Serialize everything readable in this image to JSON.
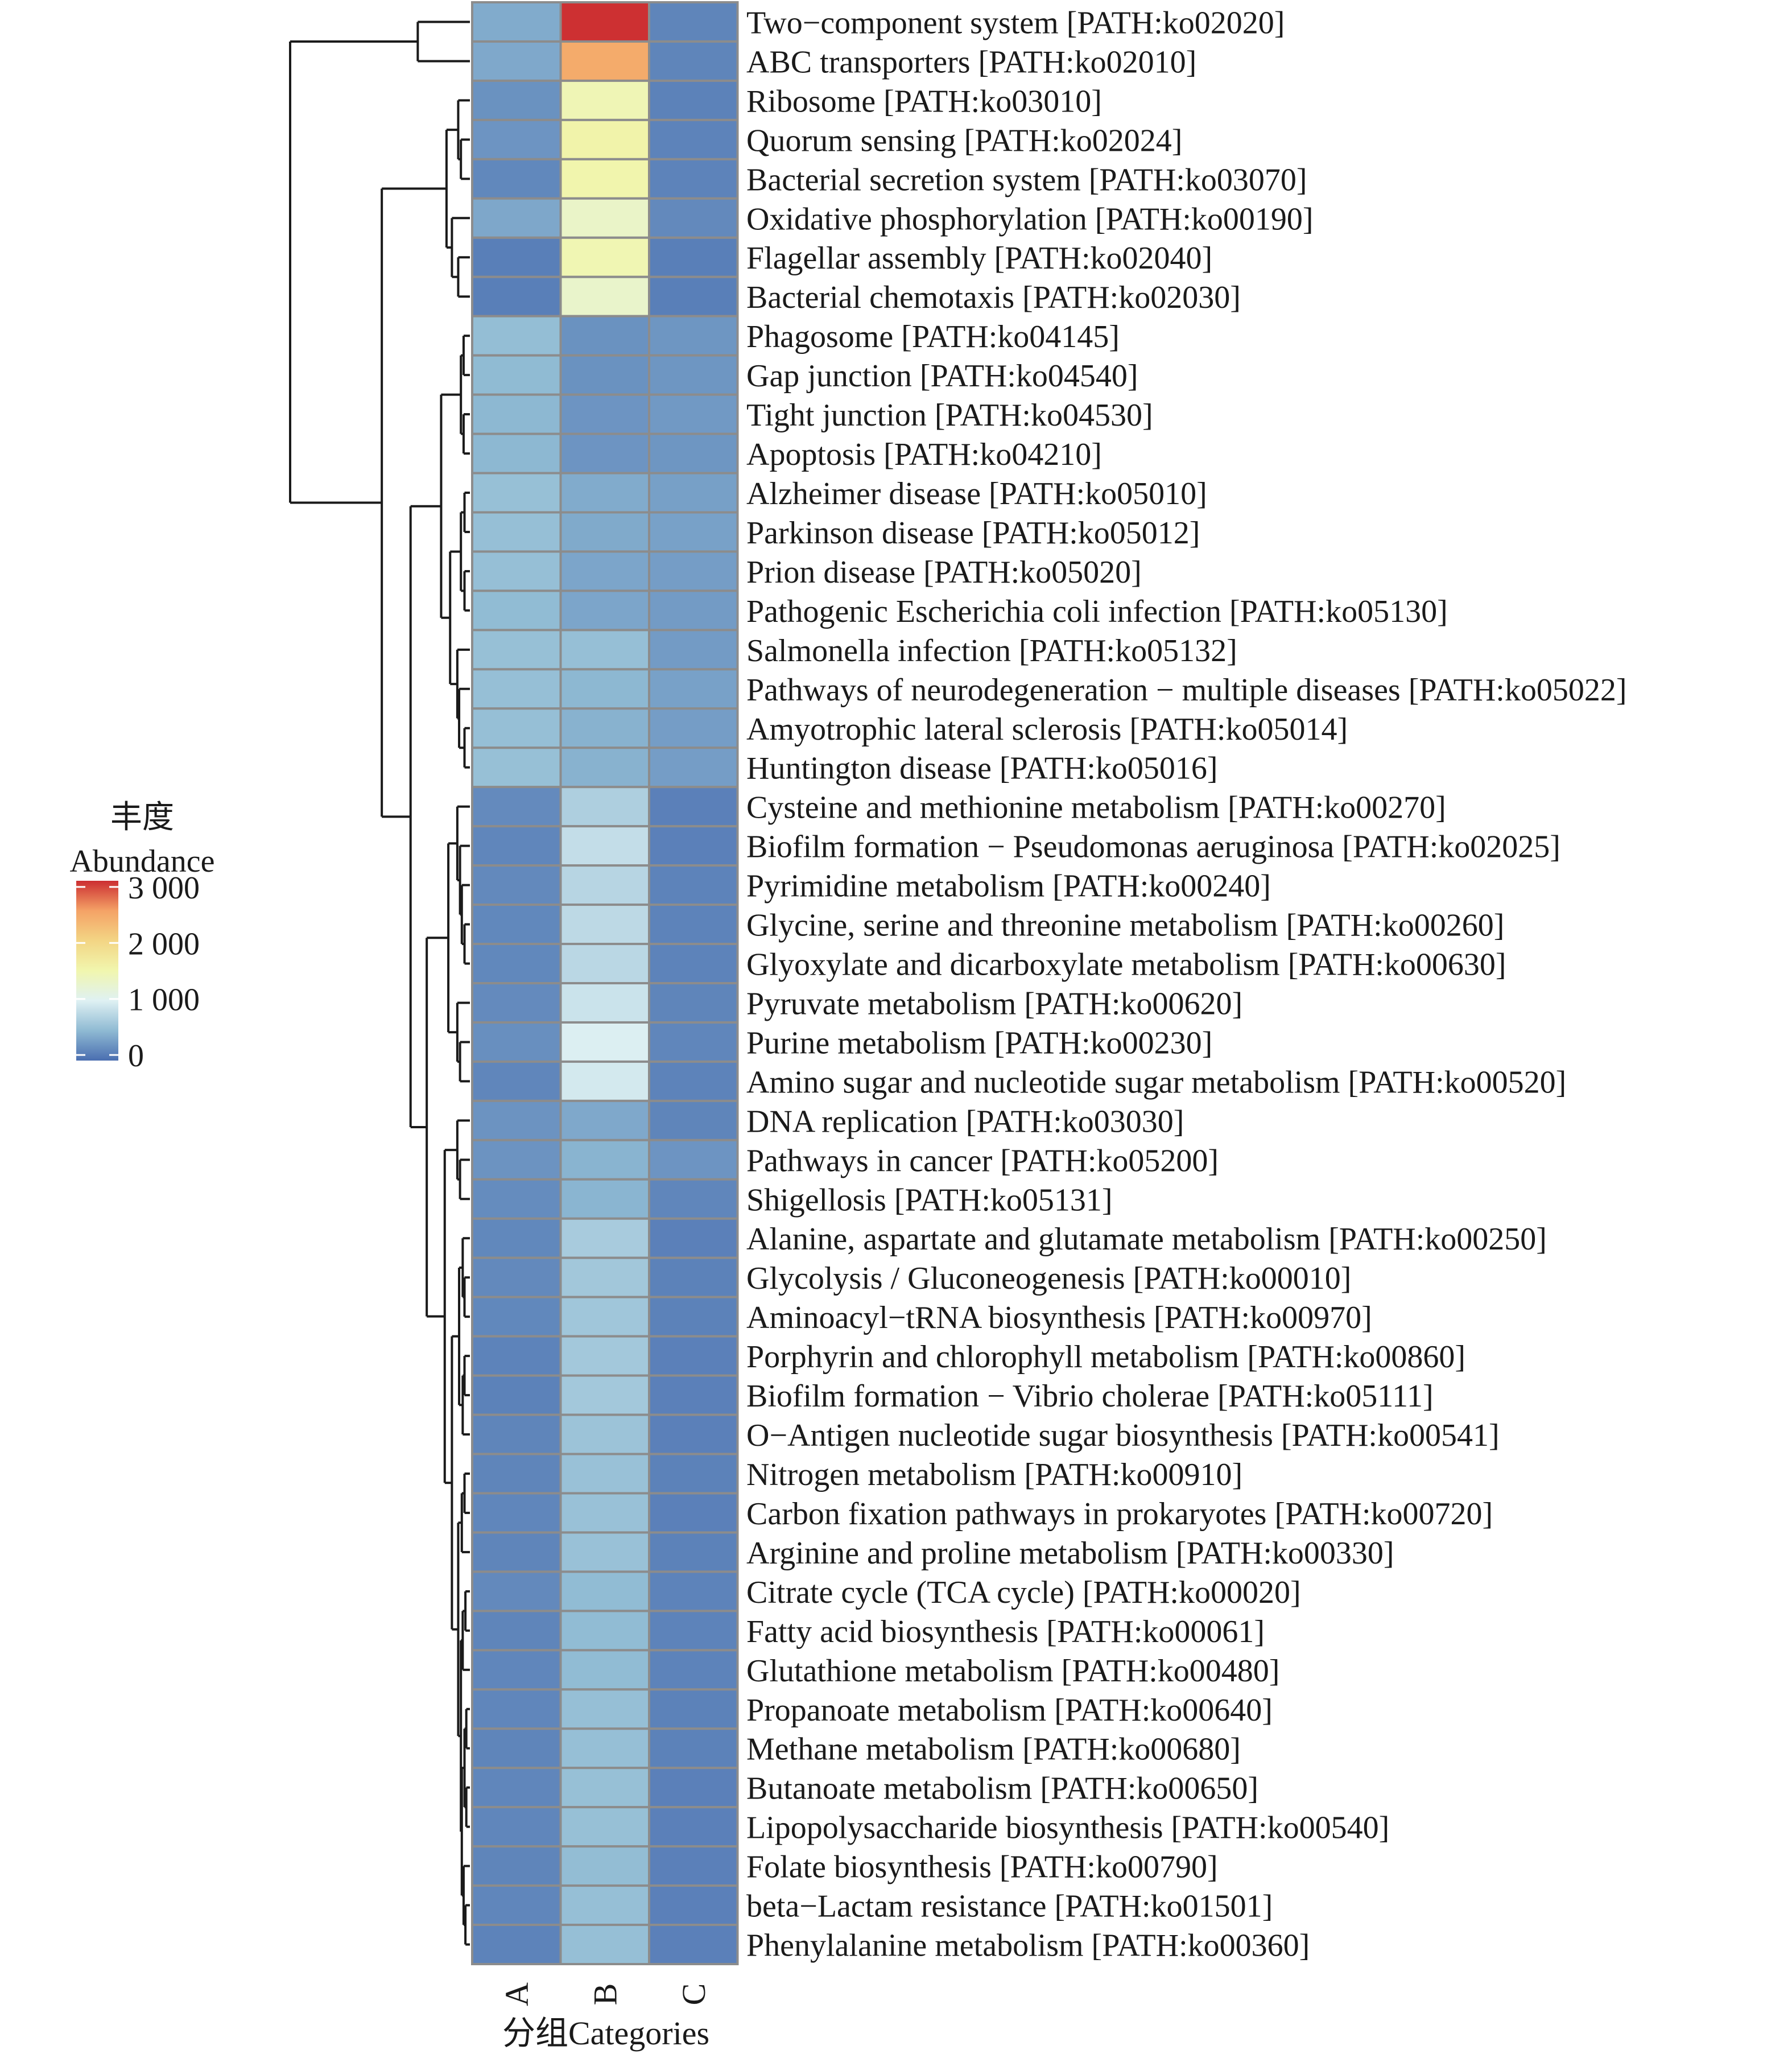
{
  "chart_data": {
    "type": "heatmap",
    "title": "",
    "xlabel": "分组Categories",
    "ylabel": "",
    "columns": [
      "A",
      "B",
      "C"
    ],
    "legend": {
      "title_zh": "丰度",
      "title_en": "Abundance",
      "ticks": [
        {
          "value": 3000,
          "label": "3 000"
        },
        {
          "value": 2000,
          "label": "2 000"
        },
        {
          "value": 1000,
          "label": "1 000"
        },
        {
          "value": 0,
          "label": "0"
        }
      ],
      "range": [
        -100,
        3110
      ],
      "placement": "left"
    },
    "color_scale": {
      "name": "RdYlBu (reversed)",
      "stops": [
        "#4a6eb0",
        "#8fbad3",
        "#dff1f3",
        "#f1f6ae",
        "#f3d584",
        "#f4a266",
        "#cc2e31"
      ]
    },
    "cell_border_color": "#8c8c8c",
    "rows": [
      {
        "label": "Two−component system [PATH:ko02020]",
        "values": [
          330,
          3100,
          60
        ]
      },
      {
        "label": "ABC transporters [PATH:ko02010]",
        "values": [
          310,
          2480,
          60
        ]
      },
      {
        "label": "Ribosome [PATH:ko03010]",
        "values": [
          150,
          1450,
          40
        ]
      },
      {
        "label": "Quorum sensing [PATH:ko02024]",
        "values": [
          170,
          1560,
          50
        ]
      },
      {
        "label": "Bacterial secretion system [PATH:ko03070]",
        "values": [
          80,
          1520,
          50
        ]
      },
      {
        "label": "Oxidative phosphorylation [PATH:ko00190]",
        "values": [
          300,
          1300,
          90
        ]
      },
      {
        "label": "Flagellar assembly [PATH:ko02040]",
        "values": [
          20,
          1470,
          20
        ]
      },
      {
        "label": "Bacterial chemotaxis [PATH:ko02030]",
        "values": [
          20,
          1280,
          20
        ]
      },
      {
        "label": "Phagosome [PATH:ko04145]",
        "values": [
          470,
          150,
          180
        ]
      },
      {
        "label": "Gap junction [PATH:ko04540]",
        "values": [
          440,
          150,
          180
        ]
      },
      {
        "label": "Tight junction [PATH:ko04530]",
        "values": [
          420,
          170,
          200
        ]
      },
      {
        "label": "Apoptosis [PATH:ko04210]",
        "values": [
          420,
          170,
          180
        ]
      },
      {
        "label": "Alzheimer disease [PATH:ko05010]",
        "values": [
          490,
          330,
          250
        ]
      },
      {
        "label": "Parkinson disease [PATH:ko05012]",
        "values": [
          480,
          320,
          260
        ]
      },
      {
        "label": "Prion disease [PATH:ko05020]",
        "values": [
          480,
          290,
          230
        ]
      },
      {
        "label": "Pathogenic Escherichia coli infection [PATH:ko05130]",
        "values": [
          450,
          290,
          220
        ]
      },
      {
        "label": "Salmonella infection [PATH:ko05132]",
        "values": [
          490,
          480,
          220
        ]
      },
      {
        "label": "Pathways of neurodegeneration − multiple diseases [PATH:ko05022]",
        "values": [
          480,
          420,
          260
        ]
      },
      {
        "label": "Amyotrophic lateral sclerosis [PATH:ko05014]",
        "values": [
          480,
          380,
          230
        ]
      },
      {
        "label": "Huntington disease [PATH:ko05016]",
        "values": [
          490,
          380,
          230
        ]
      },
      {
        "label": "Cysteine and methionine metabolism [PATH:ko00270]",
        "values": [
          100,
          640,
          30
        ]
      },
      {
        "label": "Biofilm formation − Pseudomonas aeruginosa [PATH:ko02025]",
        "values": [
          70,
          780,
          30
        ]
      },
      {
        "label": "Pyrimidine metabolism [PATH:ko00240]",
        "values": [
          90,
          700,
          50
        ]
      },
      {
        "label": "Glycine, serine and threonine metabolism [PATH:ko00260]",
        "values": [
          80,
          740,
          50
        ]
      },
      {
        "label": "Glyoxylate and dicarboxylate metabolism [PATH:ko00630]",
        "values": [
          80,
          720,
          50
        ]
      },
      {
        "label": "Pyruvate metabolism [PATH:ko00620]",
        "values": [
          100,
          830,
          60
        ]
      },
      {
        "label": "Purine metabolism [PATH:ko00230]",
        "values": [
          130,
          950,
          70
        ]
      },
      {
        "label": "Amino sugar and nucleotide sugar metabolism [PATH:ko00520]",
        "values": [
          70,
          890,
          50
        ]
      },
      {
        "label": "DNA replication [PATH:ko03030]",
        "values": [
          160,
          310,
          60
        ]
      },
      {
        "label": "Pathways in cancer [PATH:ko05200]",
        "values": [
          160,
          390,
          170
        ]
      },
      {
        "label": "Shigellosis [PATH:ko05131]",
        "values": [
          110,
          400,
          70
        ]
      },
      {
        "label": "Alanine, aspartate and glutamate metabolism [PATH:ko00250]",
        "values": [
          80,
          600,
          30
        ]
      },
      {
        "label": "Glycolysis / Gluconeogenesis [PATH:ko00010]",
        "values": [
          90,
          560,
          40
        ]
      },
      {
        "label": "Aminoacyl−tRNA biosynthesis [PATH:ko00970]",
        "values": [
          80,
          550,
          40
        ]
      },
      {
        "label": "Porphyrin and chlorophyll metabolism [PATH:ko00860]",
        "values": [
          50,
          570,
          30
        ]
      },
      {
        "label": "Biofilm formation − Vibrio cholerae [PATH:ko05111]",
        "values": [
          40,
          570,
          30
        ]
      },
      {
        "label": "O−Antigen nucleotide sugar biosynthesis [PATH:ko00541]",
        "values": [
          60,
          520,
          30
        ]
      },
      {
        "label": "Nitrogen metabolism [PATH:ko00910]",
        "values": [
          60,
          500,
          40
        ]
      },
      {
        "label": "Carbon fixation pathways in prokaryotes [PATH:ko00720]",
        "values": [
          70,
          500,
          30
        ]
      },
      {
        "label": "Arginine and proline metabolism [PATH:ko00330]",
        "values": [
          60,
          500,
          40
        ]
      },
      {
        "label": "Citrate cycle (TCA cycle) [PATH:ko00020]",
        "values": [
          90,
          450,
          50
        ]
      },
      {
        "label": "Fatty acid biosynthesis [PATH:ko00061]",
        "values": [
          60,
          450,
          50
        ]
      },
      {
        "label": "Glutathione metabolism [PATH:ko00480]",
        "values": [
          70,
          450,
          50
        ]
      },
      {
        "label": "Propanoate metabolism [PATH:ko00640]",
        "values": [
          70,
          480,
          40
        ]
      },
      {
        "label": "Methane metabolism [PATH:ko00680]",
        "values": [
          60,
          480,
          40
        ]
      },
      {
        "label": "Butanoate metabolism [PATH:ko00650]",
        "values": [
          70,
          490,
          30
        ]
      },
      {
        "label": "Lipopolysaccharide biosynthesis [PATH:ko00540]",
        "values": [
          70,
          490,
          30
        ]
      },
      {
        "label": "Folate biosynthesis [PATH:ko00790]",
        "values": [
          60,
          460,
          30
        ]
      },
      {
        "label": "beta−Lactam resistance [PATH:ko01501]",
        "values": [
          70,
          480,
          30
        ]
      },
      {
        "label": "Phenylalanine metabolism [PATH:ko00360]",
        "values": [
          50,
          480,
          30
        ]
      }
    ],
    "row_dendrogram": {
      "h": 1.0,
      "children": [
        {
          "h": 0.29,
          "children": [
            0,
            1
          ]
        },
        {
          "h": 0.49,
          "children": [
            {
              "h": 0.13,
              "children": [
                {
                  "h": 0.065,
                  "children": [
                    2,
                    {
                      "h": 0.05,
                      "children": [
                        3,
                        4
                      ]
                    }
                  ]
                },
                {
                  "h": 0.1,
                  "children": [
                    5,
                    {
                      "h": 0.065,
                      "children": [
                        6,
                        7
                      ]
                    }
                  ]
                }
              ]
            },
            {
              "h": 0.33,
              "children": [
                {
                  "h": 0.16,
                  "children": [
                    {
                      "h": 0.05,
                      "children": [
                        {
                          "h": 0.035,
                          "children": [
                            8,
                            9
                          ]
                        },
                        {
                          "h": 0.035,
                          "children": [
                            10,
                            11
                          ]
                        }
                      ]
                    },
                    {
                      "h": 0.11,
                      "children": [
                        {
                          "h": 0.05,
                          "children": [
                            {
                              "h": 0.03,
                              "children": [
                                12,
                                13
                              ]
                            },
                            {
                              "h": 0.03,
                              "children": [
                                14,
                                15
                              ]
                            }
                          ]
                        },
                        {
                          "h": 0.07,
                          "children": [
                            16,
                            {
                              "h": 0.06,
                              "children": [
                                17,
                                {
                                  "h": 0.03,
                                  "children": [
                                    18,
                                    19
                                  ]
                                }
                              ]
                            }
                          ]
                        }
                      ]
                    }
                  ]
                },
                {
                  "h": 0.24,
                  "children": [
                    {
                      "h": 0.12,
                      "children": [
                        {
                          "h": 0.07,
                          "children": [
                            20,
                            {
                              "h": 0.055,
                              "children": [
                                21,
                                {
                                  "h": 0.045,
                                  "children": [
                                    22,
                                    {
                                      "h": 0.03,
                                      "children": [
                                        23,
                                        24
                                      ]
                                    }
                                  ]
                                }
                              ]
                            }
                          ]
                        },
                        {
                          "h": 0.07,
                          "children": [
                            25,
                            {
                              "h": 0.055,
                              "children": [
                                26,
                                27
                              ]
                            }
                          ]
                        }
                      ]
                    },
                    {
                      "h": 0.14,
                      "children": [
                        {
                          "h": 0.07,
                          "children": [
                            28,
                            {
                              "h": 0.055,
                              "children": [
                                29,
                                30
                              ]
                            }
                          ]
                        },
                        {
                          "h": 0.1,
                          "children": [
                            {
                              "h": 0.06,
                              "children": [
                                {
                                  "h": 0.04,
                                  "children": [
                                    31,
                                    {
                                      "h": 0.03,
                                      "children": [
                                        32,
                                        33
                                      ]
                                    }
                                  ]
                                },
                                {
                                  "h": 0.04,
                                  "children": [
                                    {
                                      "h": 0.03,
                                      "children": [
                                        34,
                                        35
                                      ]
                                    },
                                    36
                                  ]
                                }
                              ]
                            },
                            {
                              "h": 0.065,
                              "children": [
                                {
                                  "h": 0.045,
                                  "children": [
                                    {
                                      "h": 0.03,
                                      "children": [
                                        37,
                                        38
                                      ]
                                    },
                                    39
                                  ]
                                },
                                {
                                  "h": 0.05,
                                  "children": [
                                    {
                                      "h": 0.04,
                                      "children": [
                                        {
                                          "h": 0.025,
                                          "children": [
                                            40,
                                            41
                                          ]
                                        },
                                        42
                                      ]
                                    },
                                    {
                                      "h": 0.045,
                                      "children": [
                                        {
                                          "h": 0.03,
                                          "children": [
                                            {
                                              "h": 0.02,
                                              "children": [
                                                43,
                                                44
                                              ]
                                            },
                                            {
                                              "h": 0.02,
                                              "children": [
                                                45,
                                                46
                                              ]
                                            }
                                          ]
                                        },
                                        {
                                          "h": 0.035,
                                          "children": [
                                            47,
                                            {
                                              "h": 0.025,
                                              "children": [
                                                48,
                                                49
                                              ]
                                            }
                                          ]
                                        }
                                      ]
                                    }
                                  ]
                                }
                              ]
                            }
                          ]
                        }
                      ]
                    }
                  ]
                }
              ]
            }
          ]
        }
      ]
    }
  }
}
